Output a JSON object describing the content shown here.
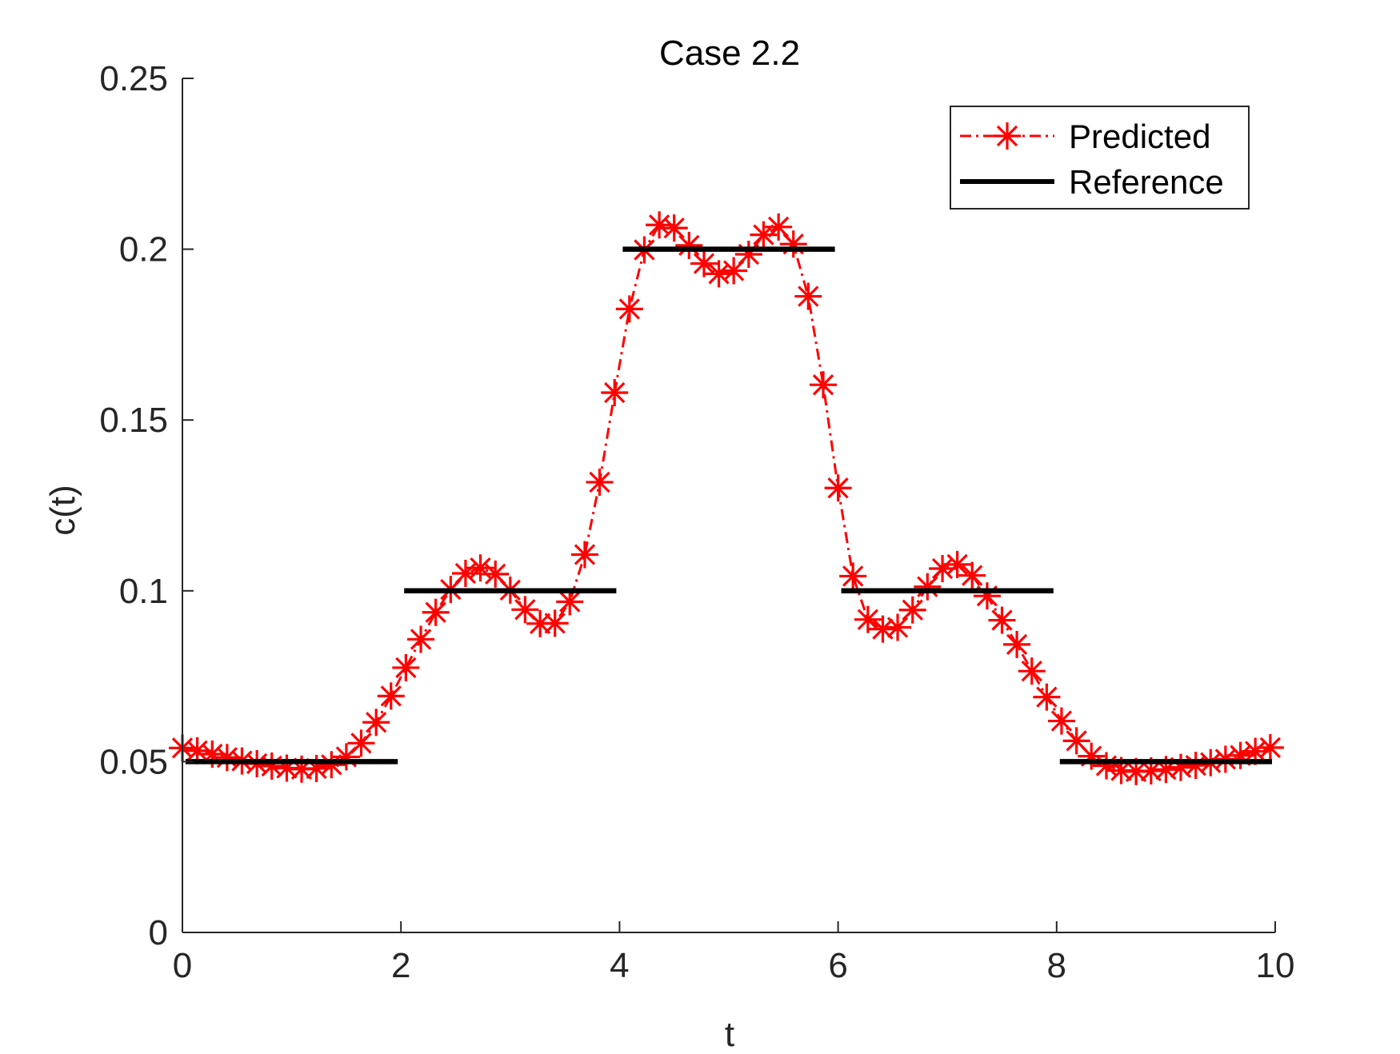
{
  "chart_data": {
    "type": "line",
    "title": "Case 2.2",
    "xlabel": "t",
    "ylabel": "c(t)",
    "xlim": [
      0,
      10
    ],
    "ylim": [
      0,
      0.25
    ],
    "xticks": [
      0,
      2,
      4,
      6,
      8,
      10
    ],
    "xtick_labels": [
      "0",
      "2",
      "4",
      "6",
      "8",
      "10"
    ],
    "yticks": [
      0,
      0.05,
      0.1,
      0.15,
      0.2,
      0.25
    ],
    "ytick_labels": [
      "0",
      "0.05",
      "0.1",
      "0.15",
      "0.2",
      "0.25"
    ],
    "grid": false,
    "legend_position": "top-right",
    "series": [
      {
        "name": "Predicted",
        "color": "#ff0000",
        "line_style": "dash-dot",
        "marker": "asterisk",
        "x": [
          0.0,
          0.136,
          0.273,
          0.409,
          0.545,
          0.682,
          0.818,
          0.955,
          1.091,
          1.227,
          1.364,
          1.5,
          1.636,
          1.773,
          1.909,
          2.045,
          2.182,
          2.318,
          2.455,
          2.591,
          2.727,
          2.864,
          3.0,
          3.136,
          3.273,
          3.409,
          3.545,
          3.682,
          3.818,
          3.955,
          4.091,
          4.227,
          4.364,
          4.5,
          4.636,
          4.773,
          4.909,
          5.045,
          5.182,
          5.318,
          5.455,
          5.591,
          5.727,
          5.864,
          6.0,
          6.136,
          6.273,
          6.409,
          6.545,
          6.682,
          6.818,
          6.955,
          7.091,
          7.227,
          7.364,
          7.5,
          7.636,
          7.773,
          7.909,
          8.045,
          8.182,
          8.318,
          8.455,
          8.591,
          8.727,
          8.864,
          9.0,
          9.136,
          9.273,
          9.409,
          9.545,
          9.682,
          9.818,
          9.955
        ],
        "y": [
          0.054,
          0.0532,
          0.0522,
          0.0512,
          0.0502,
          0.0494,
          0.0487,
          0.0481,
          0.0478,
          0.048,
          0.0491,
          0.0514,
          0.0554,
          0.0615,
          0.0692,
          0.0775,
          0.0858,
          0.0937,
          0.1004,
          0.1051,
          0.1067,
          0.1049,
          0.1002,
          0.0945,
          0.0904,
          0.0905,
          0.0968,
          0.1106,
          0.1318,
          0.158,
          0.1825,
          0.1998,
          0.2071,
          0.2062,
          0.2011,
          0.1958,
          0.1928,
          0.1937,
          0.1985,
          0.2042,
          0.2065,
          0.2015,
          0.1862,
          0.1603,
          0.1301,
          0.1043,
          0.0916,
          0.0888,
          0.0893,
          0.0944,
          0.1012,
          0.1065,
          0.1077,
          0.1045,
          0.0985,
          0.0914,
          0.0843,
          0.0765,
          0.0689,
          0.0619,
          0.0561,
          0.0516,
          0.0488,
          0.0474,
          0.0471,
          0.0473,
          0.0477,
          0.0483,
          0.0489,
          0.0497,
          0.0507,
          0.0518,
          0.053,
          0.0541
        ]
      },
      {
        "name": "Reference",
        "color": "#000000",
        "line_style": "solid",
        "segments": [
          {
            "x": [
              0,
              2
            ],
            "y": 0.05
          },
          {
            "x": [
              2,
              4
            ],
            "y": 0.1
          },
          {
            "x": [
              4,
              6
            ],
            "y": 0.2
          },
          {
            "x": [
              6,
              8
            ],
            "y": 0.1
          },
          {
            "x": [
              8,
              10
            ],
            "y": 0.05
          }
        ]
      }
    ]
  }
}
